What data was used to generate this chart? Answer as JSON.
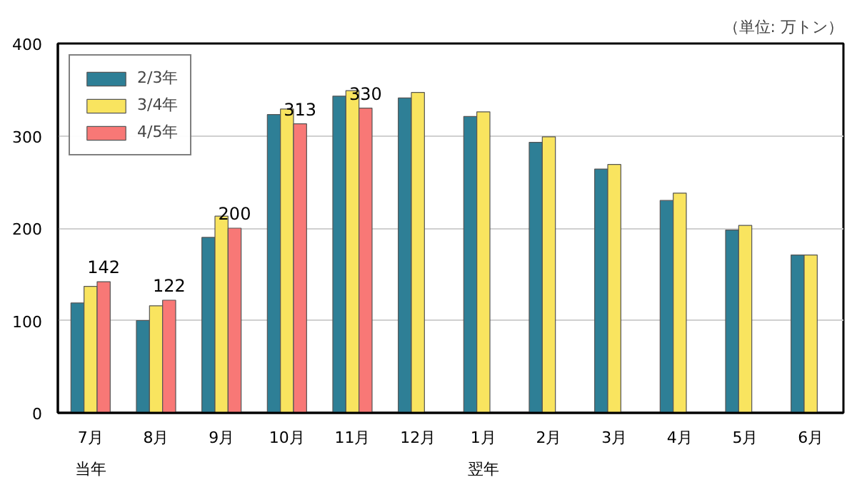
{
  "chart_data": {
    "type": "bar",
    "categories": [
      "7月",
      "8月",
      "9月",
      "10月",
      "11月",
      "12月",
      "1月",
      "2月",
      "3月",
      "4月",
      "5月",
      "6月"
    ],
    "series": [
      {
        "name": "2/3年",
        "color": "#2e7f96",
        "values": [
          119,
          100,
          190,
          323,
          343,
          341,
          321,
          293,
          264,
          230,
          198,
          171
        ]
      },
      {
        "name": "3/4年",
        "color": "#f9e45f",
        "values": [
          137,
          116,
          213,
          329,
          349,
          347,
          326,
          299,
          269,
          238,
          203,
          171
        ]
      },
      {
        "name": "4/5年",
        "color": "#f87876",
        "values": [
          142,
          122,
          200,
          313,
          330,
          null,
          null,
          null,
          null,
          null,
          null,
          null
        ],
        "value_labels": [
          "142",
          "122",
          "200",
          "313",
          "330",
          null,
          null,
          null,
          null,
          null,
          null,
          null
        ]
      }
    ],
    "ylim": [
      0,
      400
    ],
    "yticks": [
      0,
      100,
      200,
      300,
      400
    ],
    "grid": "y",
    "legend": "top left",
    "annotations": [
      "（単位: 万トン）",
      "当年",
      "翌年"
    ]
  }
}
